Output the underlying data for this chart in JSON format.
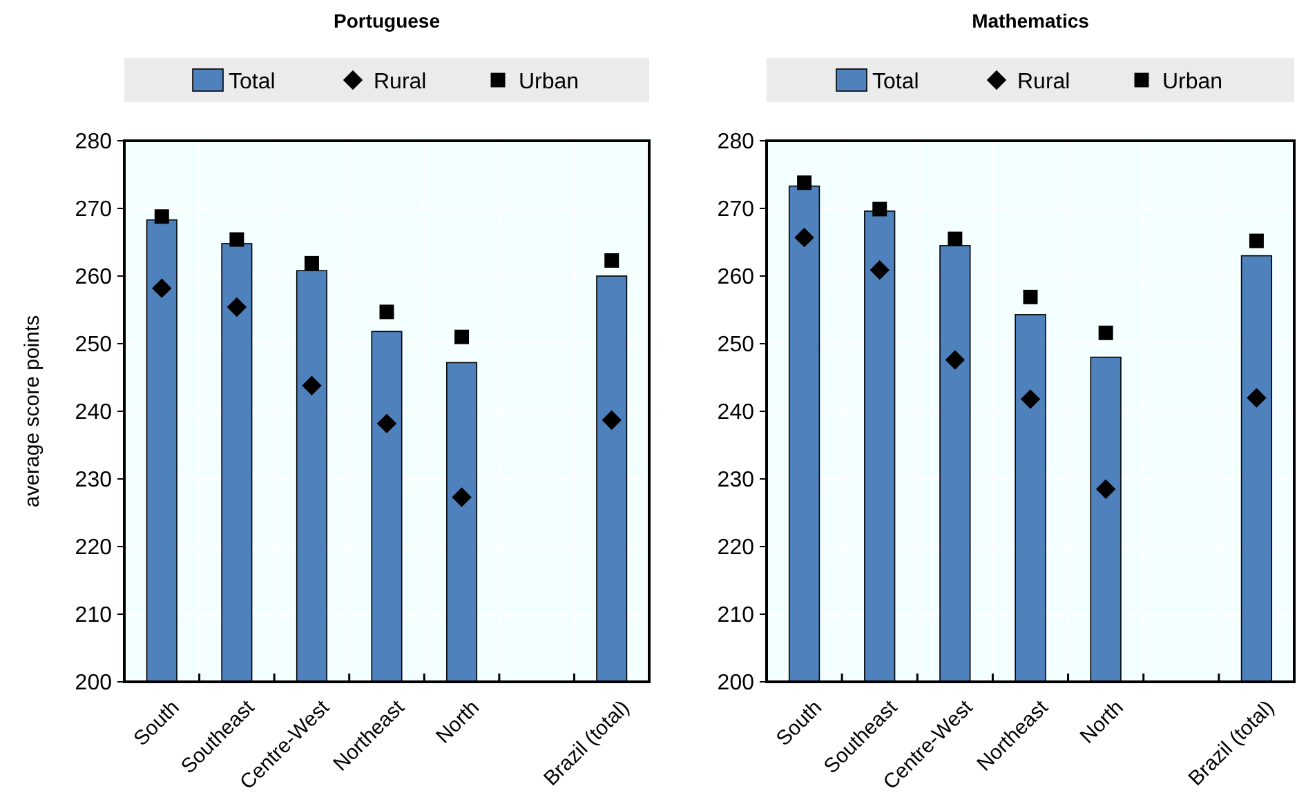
{
  "chart_data": [
    {
      "type": "bar",
      "title": "Portuguese",
      "ylabel": "average score points",
      "categories": [
        "South",
        "Southeast",
        "Centre-West",
        "Northeast",
        "North",
        null,
        "Brazil (total)"
      ],
      "ylim": [
        200,
        280
      ],
      "yticks": [
        200,
        210,
        220,
        230,
        240,
        250,
        260,
        270,
        280
      ],
      "grid": true,
      "legend": "top",
      "series": [
        {
          "name": "Total",
          "color": "#4f81bd",
          "values": [
            268.3,
            264.8,
            260.8,
            251.8,
            247.2,
            null,
            260.0
          ]
        },
        {
          "name": "Rural",
          "type": "scatter",
          "marker": "diamond",
          "color": "#000000",
          "values": [
            258.2,
            255.4,
            243.8,
            238.2,
            227.3,
            null,
            238.7
          ]
        },
        {
          "name": "Urban",
          "type": "scatter",
          "marker": "square",
          "color": "#000000",
          "values": [
            268.8,
            265.4,
            261.9,
            254.7,
            251.0,
            null,
            262.3
          ]
        }
      ]
    },
    {
      "type": "bar",
      "title": "Mathematics",
      "categories": [
        "South",
        "Southeast",
        "Centre-West",
        "Northeast",
        "North",
        null,
        "Brazil (total)"
      ],
      "ylim": [
        200,
        280
      ],
      "yticks": [
        200,
        210,
        220,
        230,
        240,
        250,
        260,
        270,
        280
      ],
      "grid": true,
      "legend": "top",
      "series": [
        {
          "name": "Total",
          "color": "#4f81bd",
          "values": [
            273.3,
            269.6,
            264.5,
            254.3,
            248.0,
            null,
            263.0
          ]
        },
        {
          "name": "Rural",
          "type": "scatter",
          "marker": "diamond",
          "color": "#000000",
          "values": [
            265.7,
            260.9,
            247.6,
            241.8,
            228.5,
            null,
            242.0
          ]
        },
        {
          "name": "Urban",
          "type": "scatter",
          "marker": "square",
          "color": "#000000",
          "values": [
            273.8,
            269.9,
            265.5,
            256.9,
            251.6,
            null,
            265.2
          ]
        }
      ]
    }
  ]
}
